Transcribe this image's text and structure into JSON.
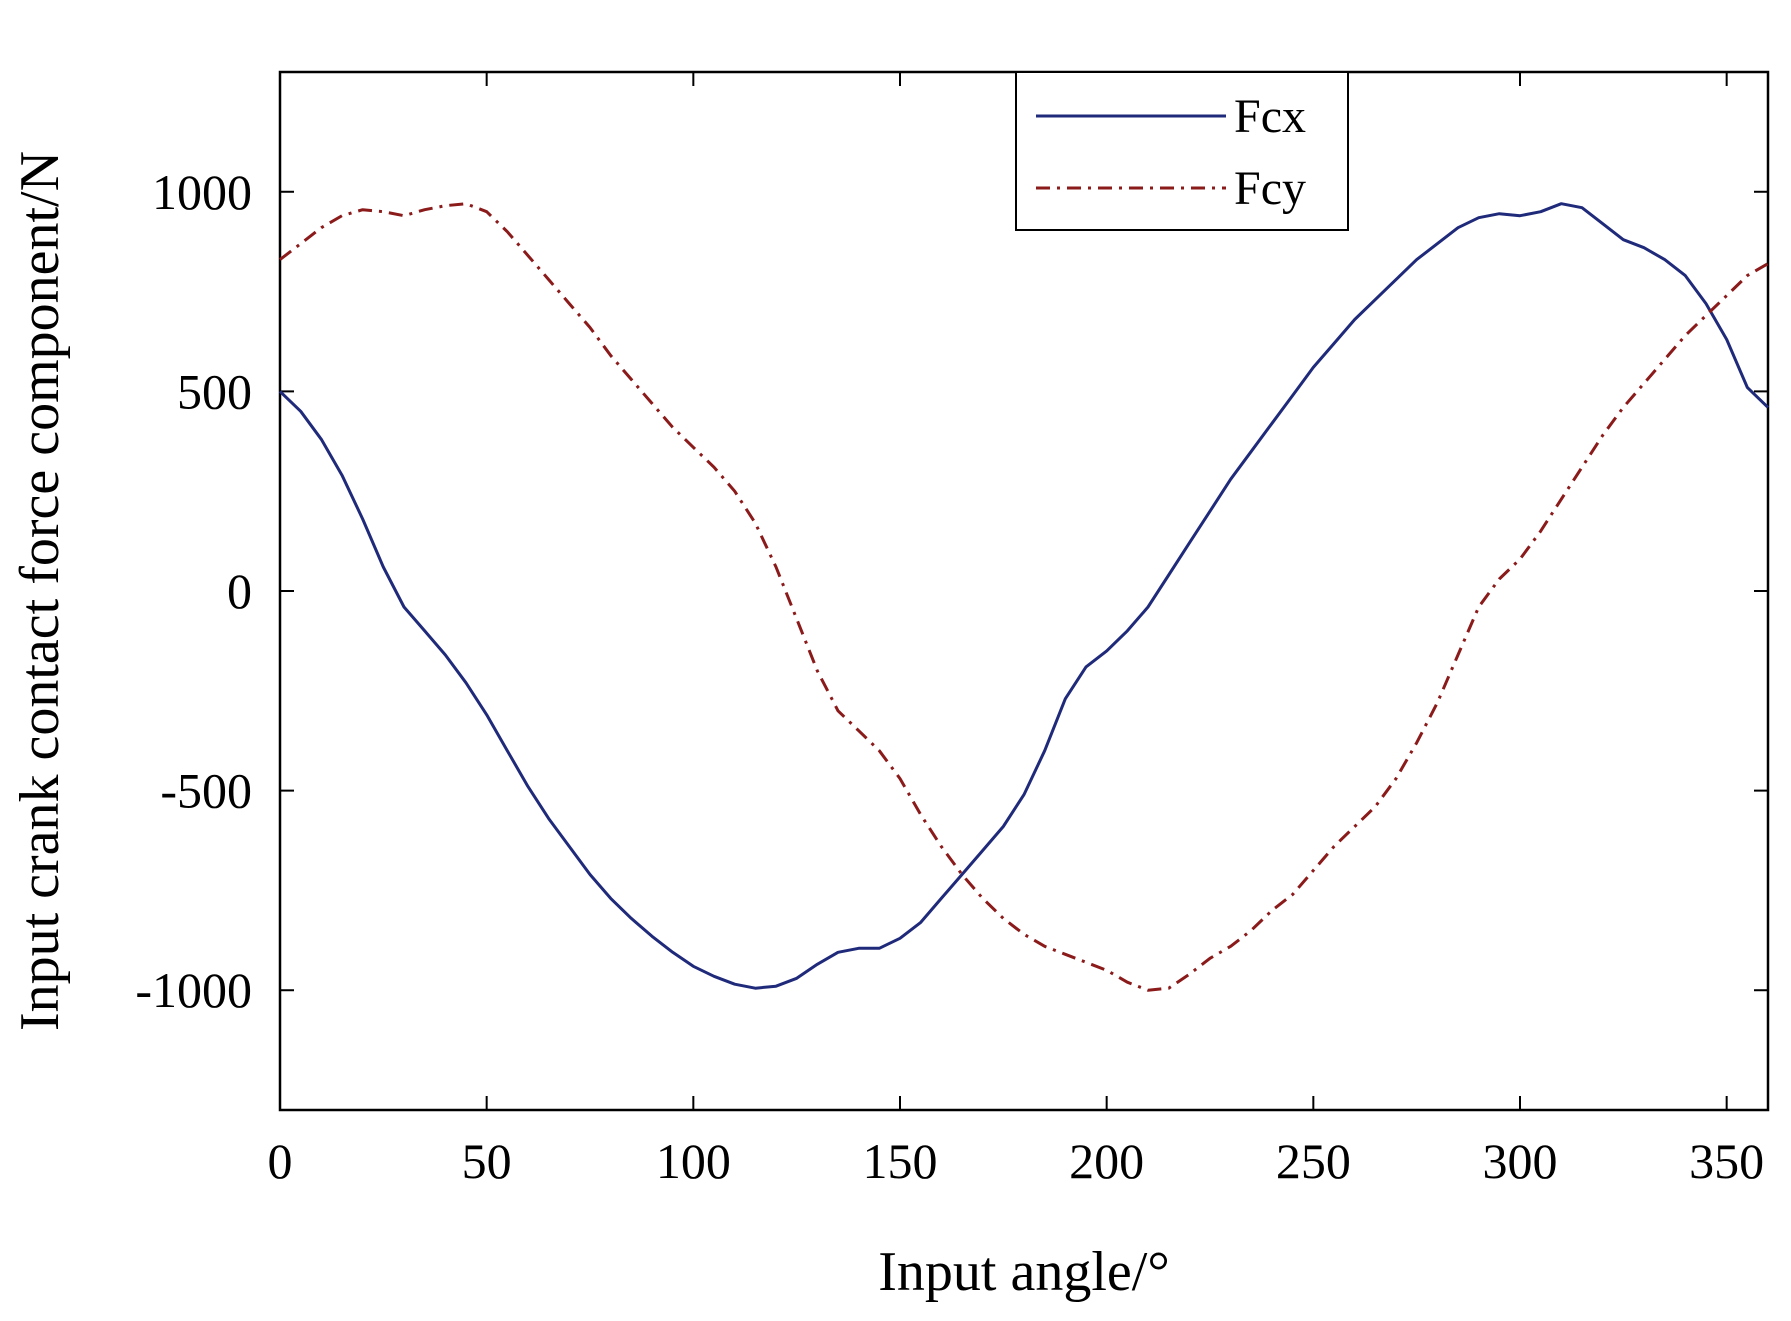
{
  "chart_data": {
    "type": "line",
    "title": "",
    "xlabel": "Input angle/°",
    "ylabel": "Input crank contact force component/N",
    "xlim": [
      0,
      360
    ],
    "ylim": [
      -1300,
      1300
    ],
    "x_ticks": [
      0,
      50,
      100,
      150,
      200,
      250,
      300,
      350
    ],
    "x_tick_labels": [
      "0",
      "50",
      "100",
      "150",
      "200",
      "250",
      "300",
      "350"
    ],
    "y_ticks": [
      -1000,
      -500,
      0,
      500,
      1000
    ],
    "y_tick_labels": [
      "-1000",
      "-500",
      "0",
      "500",
      "1000"
    ],
    "grid": false,
    "legend_position": "top-center",
    "series": [
      {
        "name": "Fcx",
        "color": "#1f2a7a",
        "line_style": "solid",
        "x": [
          0,
          5,
          10,
          15,
          20,
          25,
          30,
          35,
          40,
          45,
          50,
          55,
          60,
          65,
          70,
          75,
          80,
          85,
          90,
          95,
          100,
          105,
          110,
          115,
          120,
          125,
          130,
          135,
          140,
          145,
          150,
          155,
          160,
          165,
          170,
          175,
          180,
          185,
          190,
          195,
          200,
          205,
          210,
          215,
          220,
          225,
          230,
          235,
          240,
          245,
          250,
          255,
          260,
          265,
          270,
          275,
          280,
          285,
          290,
          295,
          300,
          305,
          310,
          315,
          320,
          325,
          330,
          335,
          340,
          345,
          350,
          355,
          360
        ],
        "y": [
          500,
          450,
          380,
          290,
          180,
          60,
          -40,
          -100,
          -160,
          -230,
          -310,
          -400,
          -490,
          -570,
          -640,
          -710,
          -770,
          -820,
          -865,
          -905,
          -940,
          -965,
          -985,
          -995,
          -990,
          -970,
          -935,
          -905,
          -895,
          -895,
          -870,
          -830,
          -770,
          -710,
          -650,
          -590,
          -510,
          -400,
          -270,
          -190,
          -150,
          -100,
          -40,
          40,
          120,
          200,
          280,
          350,
          420,
          490,
          560,
          620,
          680,
          730,
          780,
          830,
          870,
          910,
          935,
          945,
          940,
          950,
          970,
          960,
          920,
          880,
          860,
          830,
          790,
          720,
          630,
          510,
          460
        ]
      },
      {
        "name": "Fcy",
        "color": "#8b1a1a",
        "line_style": "dash-dot",
        "x": [
          0,
          5,
          10,
          15,
          20,
          25,
          30,
          35,
          40,
          45,
          50,
          55,
          60,
          65,
          70,
          75,
          80,
          85,
          90,
          95,
          100,
          105,
          110,
          115,
          120,
          125,
          130,
          135,
          140,
          145,
          150,
          155,
          160,
          165,
          170,
          175,
          180,
          185,
          190,
          195,
          200,
          205,
          210,
          215,
          220,
          225,
          230,
          235,
          240,
          245,
          250,
          255,
          260,
          265,
          270,
          275,
          280,
          285,
          290,
          295,
          300,
          305,
          310,
          315,
          320,
          325,
          330,
          335,
          340,
          345,
          350,
          355,
          360
        ],
        "y": [
          830,
          870,
          910,
          940,
          955,
          950,
          940,
          955,
          965,
          970,
          950,
          900,
          840,
          780,
          720,
          660,
          590,
          530,
          470,
          410,
          360,
          310,
          250,
          170,
          60,
          -70,
          -200,
          -300,
          -350,
          -400,
          -470,
          -560,
          -640,
          -710,
          -770,
          -820,
          -860,
          -890,
          -910,
          -930,
          -950,
          -980,
          -1000,
          -995,
          -960,
          -920,
          -890,
          -850,
          -800,
          -760,
          -700,
          -640,
          -590,
          -540,
          -470,
          -380,
          -280,
          -160,
          -40,
          30,
          80,
          150,
          230,
          310,
          390,
          460,
          520,
          580,
          640,
          690,
          740,
          790,
          820
        ]
      }
    ]
  }
}
